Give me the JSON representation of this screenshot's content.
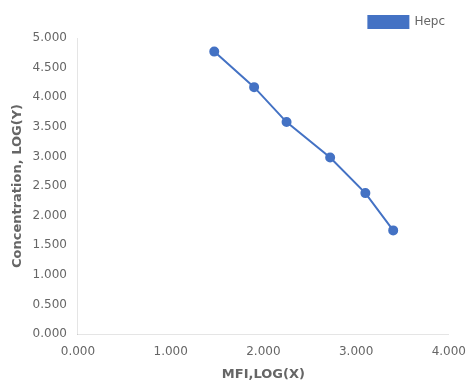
{
  "chart_data": {
    "type": "line",
    "x": [
      1.47,
      1.9,
      2.25,
      2.72,
      3.1,
      3.4
    ],
    "series": [
      {
        "name": "Hepc",
        "color": "#4472C4",
        "marker": "o",
        "values": [
          4.77,
          4.17,
          3.58,
          2.98,
          2.38,
          1.75
        ]
      }
    ],
    "xlabel": "MFI,LOG(X)",
    "ylabel": "Concentration, LOG(Y)",
    "xlim": [
      0.0,
      4.0
    ],
    "ylim": [
      0.0,
      5.0
    ],
    "xticks": [
      {
        "value": 0.0,
        "label": "0.000"
      },
      {
        "value": 1.0,
        "label": "1.000"
      },
      {
        "value": 2.0,
        "label": "2.000"
      },
      {
        "value": 3.0,
        "label": "3.000"
      },
      {
        "value": 4.0,
        "label": "4.000"
      }
    ],
    "yticks": [
      {
        "value": 0.0,
        "label": "0.000"
      },
      {
        "value": 0.5,
        "label": "0.500"
      },
      {
        "value": 1.0,
        "label": "1.000"
      },
      {
        "value": 1.5,
        "label": "1.500"
      },
      {
        "value": 2.0,
        "label": "2.000"
      },
      {
        "value": 2.5,
        "label": "2.500"
      },
      {
        "value": 3.0,
        "label": "3.000"
      },
      {
        "value": 3.5,
        "label": "3.500"
      },
      {
        "value": 4.0,
        "label": "4.000"
      },
      {
        "value": 4.5,
        "label": "4.500"
      },
      {
        "value": 5.0,
        "label": "5.000"
      }
    ],
    "grid": false,
    "legend": "upper right"
  }
}
